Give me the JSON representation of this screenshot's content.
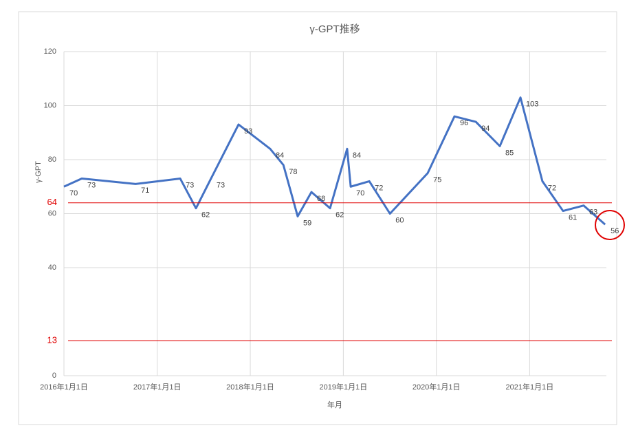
{
  "chart_data": {
    "type": "line",
    "title": "γ-GPT推移",
    "x_label": "年月",
    "y_label": "γ-GPT",
    "x": [
      "2016-01-01",
      "2016-03-11",
      "2016-10-08",
      "2017-04-01",
      "2017-06-02",
      "2017-07-31",
      "2017-11-16",
      "2018-03-20",
      "2018-05-11",
      "2018-07-06",
      "2018-08-29",
      "2018-11-10",
      "2019-01-16",
      "2019-01-30",
      "2019-04-13",
      "2019-07-03",
      "2019-11-28",
      "2020-03-12",
      "2020-06-04",
      "2020-09-06",
      "2020-11-26",
      "2021-02-20",
      "2021-05-12",
      "2021-08-01",
      "2021-10-24"
    ],
    "series": [
      {
        "name": "γ-GPT",
        "color": "#4472c4",
        "values": [
          70,
          73,
          71,
          73,
          62,
          73,
          93,
          84,
          78,
          59,
          68,
          62,
          84,
          70,
          72,
          60,
          75,
          96,
          94,
          85,
          103,
          72,
          61,
          63,
          56
        ]
      }
    ],
    "xlim": [
      "2016-01-01",
      "2021-10-29"
    ],
    "xticks": [
      {
        "value": "2016-01-01",
        "label": "2016年1月1日"
      },
      {
        "value": "2017-01-01",
        "label": "2017年1月1日"
      },
      {
        "value": "2018-01-01",
        "label": "2018年1月1日"
      },
      {
        "value": "2019-01-01",
        "label": "2019年1月1日"
      },
      {
        "value": "2020-01-01",
        "label": "2020年1月1日"
      },
      {
        "value": "2021-01-01",
        "label": "2021年1月1日"
      }
    ],
    "ylim": [
      0,
      120
    ],
    "yticks": [
      0,
      40,
      60,
      80,
      100,
      120
    ],
    "grid": true,
    "reference_lines": [
      {
        "value": 64,
        "color": "#e00000"
      },
      {
        "value": 13,
        "color": "#e00000"
      }
    ]
  }
}
